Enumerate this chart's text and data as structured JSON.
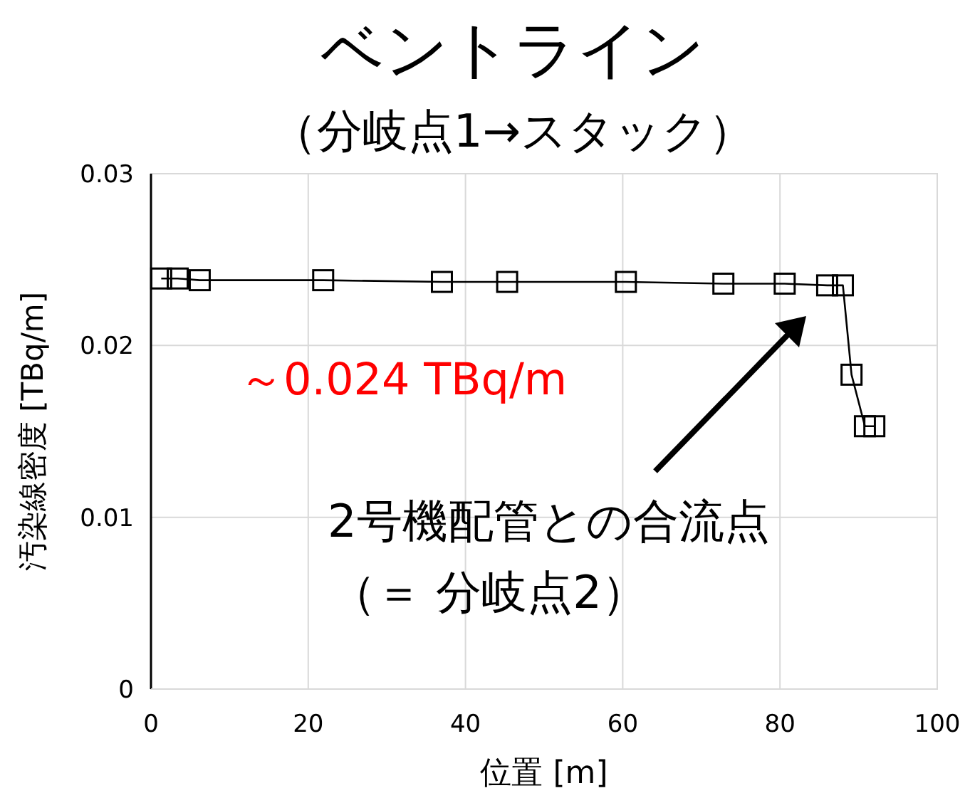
{
  "chart_data": {
    "type": "line",
    "title": "ベントライン",
    "subtitle": "（分岐点1→スタック）",
    "xlabel": "位置 [m]",
    "ylabel": "汚染線密度 [TBq/m]",
    "x": [
      1.3,
      3.4,
      6.2,
      21.9,
      37.0,
      45.3,
      60.4,
      72.8,
      80.6,
      86.0,
      88.0,
      89.1,
      90.8,
      92.0
    ],
    "series": [
      {
        "color": "#000000",
        "values": [
          0.0239,
          0.0239,
          0.0238,
          0.0238,
          0.0237,
          0.0237,
          0.0237,
          0.0236,
          0.0236,
          0.0235,
          0.0235,
          0.0183,
          0.0153,
          0.0153
        ]
      }
    ],
    "xlim": [
      0,
      100
    ],
    "xticks": [
      0,
      20,
      40,
      60,
      80,
      100
    ],
    "ylim": [
      0,
      0.03
    ],
    "yticks": [
      0,
      0.01,
      0.02,
      0.03
    ],
    "grid": true,
    "marker": "square",
    "line_style": "solid",
    "annotations": [
      "～0.024 TBq/m",
      "2号機配管との合流点",
      "（＝ 分岐点2）"
    ]
  }
}
